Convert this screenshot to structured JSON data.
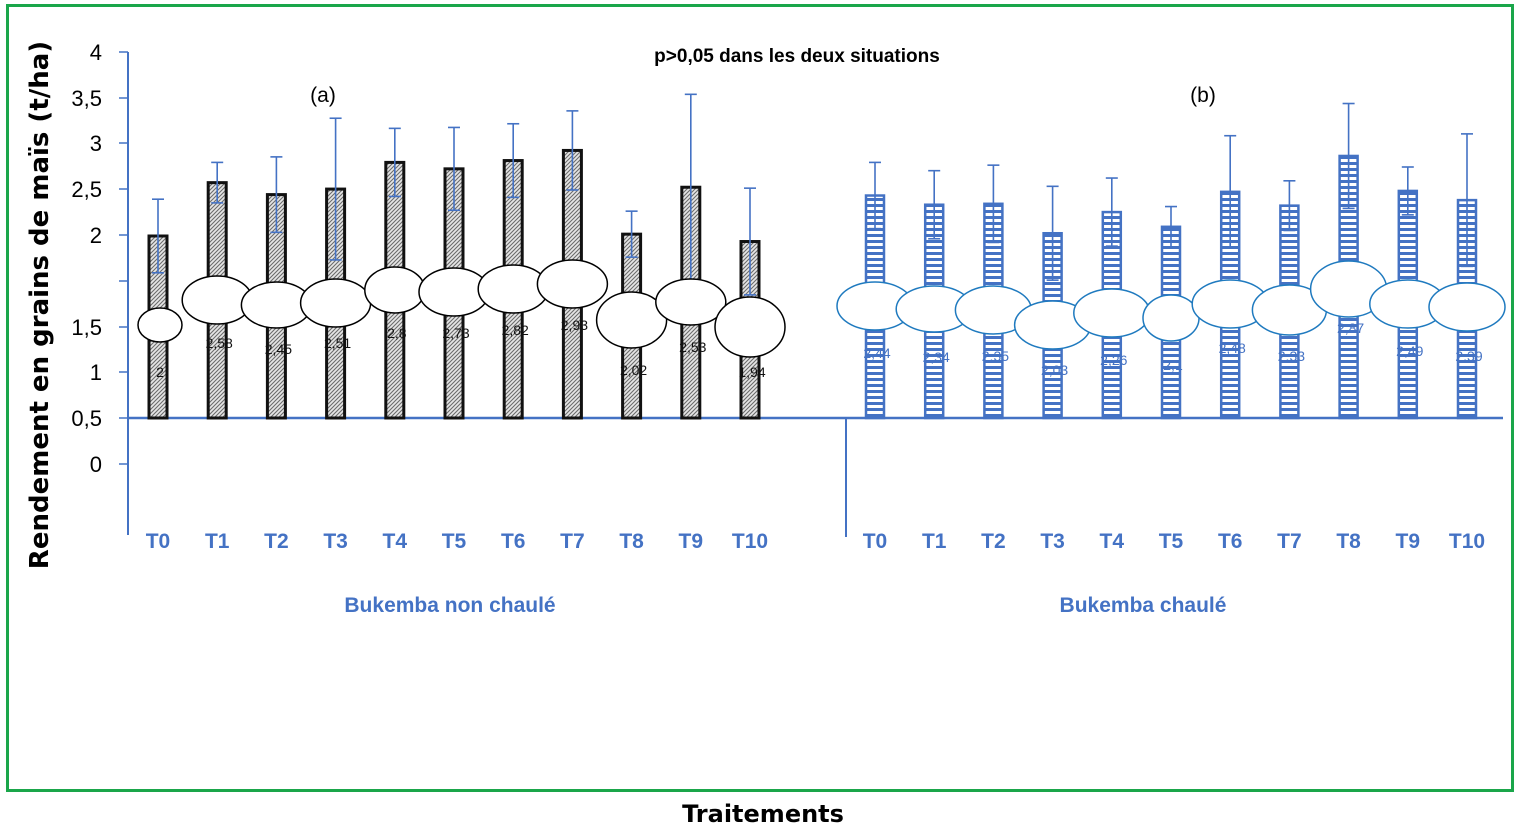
{
  "chart_data": {
    "type": "bar",
    "title": "p>0,05 dans les deux situations",
    "ylabel": "Rendement en grains de maïs (t/ha)",
    "xlabel": "Traitements",
    "y_ticks": [
      "4",
      "3,5",
      "3",
      "2,5",
      "2",
      "1,5",
      "1",
      "0,5",
      "0"
    ],
    "ylim": [
      0,
      4
    ],
    "grid": false,
    "colors": {
      "panel_a": "#111111",
      "panel_b": "#4472c4",
      "axis": "#4472c4",
      "frame": "#1aa64a"
    },
    "panels": [
      {
        "tag": "(a)",
        "group_label": "Bukemba non chaulé",
        "categories": [
          "T0",
          "T1",
          "T2",
          "T3",
          "T4",
          "T5",
          "T6",
          "T7",
          "T8",
          "T9",
          "T10"
        ],
        "values": [
          2.0,
          2.58,
          2.45,
          2.51,
          2.8,
          2.73,
          2.82,
          2.93,
          2.02,
          2.53,
          1.94
        ],
        "value_labels": [
          "2",
          "2,58",
          "2,45",
          "2,51",
          "2,8",
          "2,73",
          "2,82",
          "2,93",
          "2,02",
          "2,53",
          "1,94"
        ],
        "err_high": [
          2.4,
          2.8,
          2.86,
          3.28,
          3.17,
          3.18,
          3.22,
          3.36,
          2.27,
          3.54,
          2.52
        ],
        "err_low": [
          1.6,
          2.36,
          2.04,
          1.74,
          2.43,
          2.28,
          2.42,
          2.5,
          1.77,
          1.52,
          1.36
        ]
      },
      {
        "tag": "(b)",
        "group_label": "Bukemba chaulé",
        "categories": [
          "T0",
          "T1",
          "T2",
          "T3",
          "T4",
          "T5",
          "T6",
          "T7",
          "T8",
          "T9",
          "T10"
        ],
        "values": [
          2.44,
          2.34,
          2.35,
          2.03,
          2.26,
          2.1,
          2.48,
          2.33,
          2.87,
          2.49,
          2.39
        ],
        "value_labels": [
          "2,44",
          "2,34",
          "2,35",
          "2,03",
          "2,26",
          "2,1",
          "2,48",
          "2,33",
          "2,87",
          "2,49",
          "2,39"
        ],
        "err_high": [
          2.8,
          2.71,
          2.77,
          2.54,
          2.63,
          2.32,
          3.09,
          2.6,
          3.44,
          2.75,
          3.11
        ],
        "err_low": [
          2.08,
          1.97,
          1.93,
          1.52,
          1.89,
          1.88,
          1.87,
          2.06,
          2.3,
          2.23,
          1.67
        ]
      }
    ]
  }
}
